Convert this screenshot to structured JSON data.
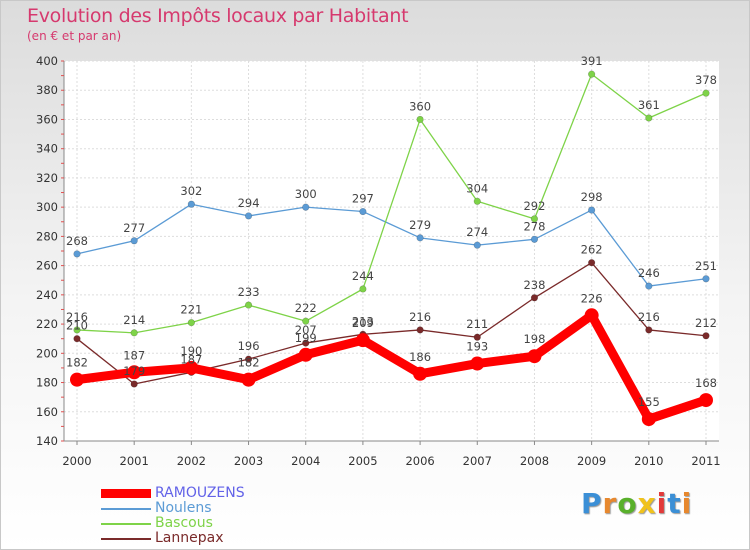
{
  "header": {
    "title": "Evolution des Impôts locaux par Habitant",
    "subtitle": "(en € et par an)"
  },
  "brand": {
    "text": "Proxiti",
    "colors": [
      "#3b8fd6",
      "#e7882e",
      "#59b02b",
      "#f0c21c",
      "#e23a3a",
      "#3b8fd6",
      "#e7882e"
    ]
  },
  "chart_data": {
    "type": "line",
    "title": "Evolution des Impôts locaux par Habitant",
    "subtitle": "(en € et par an)",
    "xlabel": "",
    "ylabel": "",
    "categories": [
      "2000",
      "2001",
      "2002",
      "2003",
      "2004",
      "2005",
      "2006",
      "2007",
      "2008",
      "2009",
      "2010",
      "2011"
    ],
    "ylim": [
      140,
      400
    ],
    "yticks": [
      140,
      160,
      180,
      200,
      220,
      240,
      260,
      280,
      300,
      320,
      340,
      360,
      380,
      400
    ],
    "grid": true,
    "legend_position": "bottom-left",
    "series": [
      {
        "name": "RAMOUZENS",
        "color": "#ff0000",
        "label_color": "#6262e8",
        "values": [
          182,
          187,
          190,
          182,
          199,
          209,
          186,
          193,
          198,
          226,
          155,
          168
        ]
      },
      {
        "name": "Noulens",
        "color": "#5b9bd5",
        "label_color": "#5b9bd5",
        "values": [
          268,
          277,
          302,
          294,
          300,
          297,
          279,
          274,
          278,
          298,
          246,
          251
        ]
      },
      {
        "name": "Bascous",
        "color": "#7ed348",
        "label_color": "#7ed348",
        "values": [
          216,
          214,
          221,
          233,
          222,
          244,
          360,
          304,
          292,
          391,
          361,
          378
        ]
      },
      {
        "name": "Lannepax",
        "color": "#7a2a2a",
        "label_color": "#7a2a2a",
        "values": [
          210,
          179,
          187,
          196,
          207,
          213,
          216,
          211,
          238,
          262,
          216,
          212
        ]
      }
    ]
  }
}
